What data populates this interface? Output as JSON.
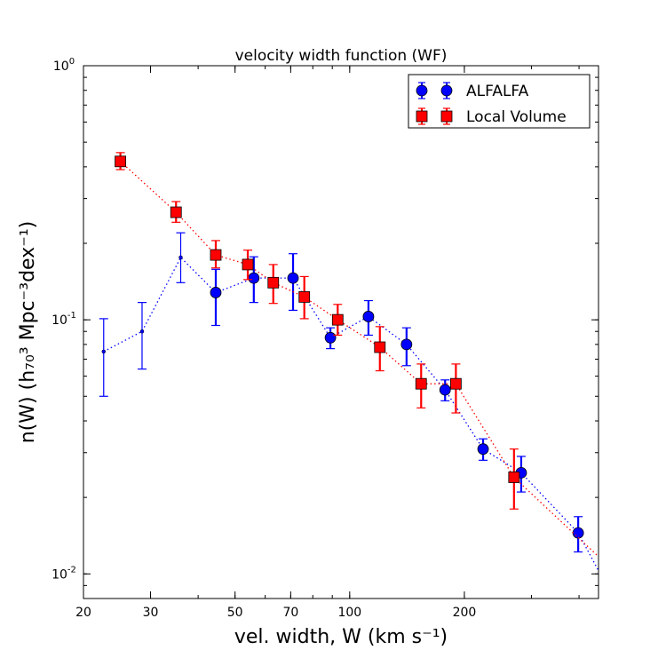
{
  "chart_data": {
    "type": "scatter",
    "title": "velocity width function (WF)",
    "xlabel": "vel. width, W   (km s⁻¹)",
    "ylabel": "n(W)     (h₇₀³  Mpc⁻³dex⁻¹)",
    "xscale": "log",
    "yscale": "log",
    "xlim": [
      20,
      450
    ],
    "ylim": [
      0.008,
      1.0
    ],
    "x_ticks": [
      20,
      30,
      50,
      70,
      100,
      200
    ],
    "y_ticks": [
      {
        "value": 0.01,
        "base": "10",
        "exp": "-2"
      },
      {
        "value": 0.1,
        "base": "10",
        "exp": "-1"
      },
      {
        "value": 1.0,
        "base": "10",
        "exp": "0"
      }
    ],
    "grid": false,
    "legend_position": "top-right",
    "series": [
      {
        "name": "ALFALFA",
        "color": "#0000ff",
        "marker": "circle",
        "line_style": "dotted",
        "points": [
          {
            "x": 22.6,
            "y": 0.075,
            "ylo": 0.05,
            "yhi": 0.101,
            "marker": "small"
          },
          {
            "x": 28.5,
            "y": 0.09,
            "ylo": 0.064,
            "yhi": 0.117,
            "marker": "small"
          },
          {
            "x": 36,
            "y": 0.176,
            "ylo": 0.14,
            "yhi": 0.22,
            "marker": "small"
          },
          {
            "x": 44.5,
            "y": 0.128,
            "ylo": 0.095,
            "yhi": 0.158
          },
          {
            "x": 56,
            "y": 0.146,
            "ylo": 0.117,
            "yhi": 0.177
          },
          {
            "x": 71,
            "y": 0.146,
            "ylo": 0.109,
            "yhi": 0.182
          },
          {
            "x": 89,
            "y": 0.085,
            "ylo": 0.077,
            "yhi": 0.093
          },
          {
            "x": 112,
            "y": 0.103,
            "ylo": 0.087,
            "yhi": 0.119
          },
          {
            "x": 141,
            "y": 0.08,
            "ylo": 0.066,
            "yhi": 0.093
          },
          {
            "x": 178,
            "y": 0.053,
            "ylo": 0.048,
            "yhi": 0.058
          },
          {
            "x": 224,
            "y": 0.031,
            "ylo": 0.028,
            "yhi": 0.034
          },
          {
            "x": 282,
            "y": 0.025,
            "ylo": 0.021,
            "yhi": 0.029
          },
          {
            "x": 398,
            "y": 0.0145,
            "ylo": 0.0122,
            "yhi": 0.0168
          },
          {
            "x": 450,
            "y": 0.0103,
            "marker": "none"
          }
        ]
      },
      {
        "name": "Local Volume",
        "color": "#ff0000",
        "marker": "square",
        "line_style": "dotted",
        "points": [
          {
            "x": 25,
            "y": 0.42,
            "ylo": 0.39,
            "yhi": 0.455
          },
          {
            "x": 35,
            "y": 0.265,
            "ylo": 0.242,
            "yhi": 0.292
          },
          {
            "x": 44.5,
            "y": 0.18,
            "ylo": 0.16,
            "yhi": 0.205
          },
          {
            "x": 54,
            "y": 0.165,
            "ylo": 0.144,
            "yhi": 0.188
          },
          {
            "x": 63,
            "y": 0.14,
            "ylo": 0.116,
            "yhi": 0.165
          },
          {
            "x": 76,
            "y": 0.123,
            "ylo": 0.101,
            "yhi": 0.148
          },
          {
            "x": 93,
            "y": 0.1,
            "ylo": 0.087,
            "yhi": 0.115
          },
          {
            "x": 120,
            "y": 0.078,
            "ylo": 0.063,
            "yhi": 0.094
          },
          {
            "x": 154,
            "y": 0.056,
            "ylo": 0.045,
            "yhi": 0.067
          },
          {
            "x": 190,
            "y": 0.056,
            "ylo": 0.043,
            "yhi": 0.067
          },
          {
            "x": 270,
            "y": 0.024,
            "ylo": 0.018,
            "yhi": 0.031
          },
          {
            "x": 450,
            "y": 0.0117,
            "marker": "none"
          }
        ]
      }
    ]
  }
}
